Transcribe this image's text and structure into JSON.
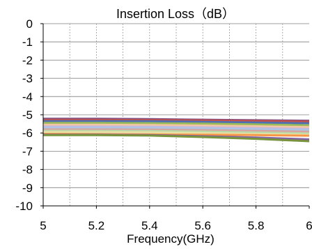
{
  "chart_data": {
    "type": "line",
    "title": "Insertion Loss（dB）",
    "xlabel": "Frequency(GHz)",
    "ylabel": "",
    "xlim": [
      5,
      6
    ],
    "ylim": [
      -10,
      0
    ],
    "x_ticks": [
      "5",
      "5.2",
      "5.4",
      "5.6",
      "5.8",
      "6"
    ],
    "y_ticks": [
      "0",
      "-1",
      "-2",
      "-3",
      "-4",
      "-5",
      "-6",
      "-7",
      "-8",
      "-9",
      "-10"
    ],
    "grid": true,
    "legend": "none",
    "series": [
      {
        "color": "#7b4f86",
        "x": [
          5,
          5.2,
          5.4,
          5.6,
          5.8,
          6
        ],
        "values": [
          -5.22,
          -5.22,
          -5.24,
          -5.27,
          -5.3,
          -5.33
        ]
      },
      {
        "color": "#c0504d",
        "x": [
          5,
          5.2,
          5.4,
          5.6,
          5.8,
          6
        ],
        "values": [
          -5.28,
          -5.28,
          -5.29,
          -5.31,
          -5.34,
          -5.37
        ]
      },
      {
        "color": "#4f6fb3",
        "x": [
          5,
          5.2,
          5.4,
          5.6,
          5.8,
          6
        ],
        "values": [
          -5.35,
          -5.35,
          -5.36,
          -5.39,
          -5.43,
          -5.47
        ]
      },
      {
        "color": "#9bbb59",
        "x": [
          5,
          5.2,
          5.4,
          5.6,
          5.8,
          6
        ],
        "values": [
          -5.45,
          -5.45,
          -5.46,
          -5.49,
          -5.53,
          -5.58
        ]
      },
      {
        "color": "#f2c6a4",
        "x": [
          5,
          5.2,
          5.4,
          5.6,
          5.8,
          6
        ],
        "values": [
          -5.55,
          -5.55,
          -5.56,
          -5.59,
          -5.63,
          -5.68
        ]
      },
      {
        "color": "#c6b8dc",
        "x": [
          5,
          5.2,
          5.4,
          5.6,
          5.8,
          6
        ],
        "values": [
          -5.65,
          -5.65,
          -5.66,
          -5.69,
          -5.73,
          -5.78
        ]
      },
      {
        "color": "#a9c8e8",
        "x": [
          5,
          5.2,
          5.4,
          5.6,
          5.8,
          6
        ],
        "values": [
          -5.72,
          -5.72,
          -5.73,
          -5.76,
          -5.8,
          -5.85
        ]
      },
      {
        "color": "#d9a3a1",
        "x": [
          5,
          5.2,
          5.4,
          5.6,
          5.8,
          6
        ],
        "values": [
          -5.8,
          -5.8,
          -5.81,
          -5.84,
          -5.88,
          -5.93
        ]
      },
      {
        "color": "#b7d7a8",
        "x": [
          5,
          5.2,
          5.4,
          5.6,
          5.8,
          6
        ],
        "values": [
          -5.88,
          -5.88,
          -5.89,
          -5.92,
          -5.97,
          -6.02
        ]
      },
      {
        "color": "#e6e0a4",
        "x": [
          5,
          5.2,
          5.4,
          5.6,
          5.8,
          6
        ],
        "values": [
          -5.95,
          -5.95,
          -5.96,
          -6.0,
          -6.05,
          -6.1
        ]
      },
      {
        "color": "#f79646",
        "x": [
          5,
          5.2,
          5.4,
          5.6,
          5.8,
          6
        ],
        "values": [
          -6.05,
          -6.07,
          -6.08,
          -6.1,
          -6.12,
          -6.15
        ]
      },
      {
        "color": "#8064a2",
        "x": [
          5,
          5.2,
          5.4,
          5.6,
          5.8,
          6
        ],
        "values": [
          -6.1,
          -6.1,
          -6.12,
          -6.18,
          -6.25,
          -6.35
        ]
      },
      {
        "color": "#77933c",
        "x": [
          5,
          5.2,
          5.4,
          5.6,
          5.8,
          6
        ],
        "values": [
          -6.12,
          -6.12,
          -6.14,
          -6.22,
          -6.32,
          -6.45
        ]
      }
    ]
  }
}
